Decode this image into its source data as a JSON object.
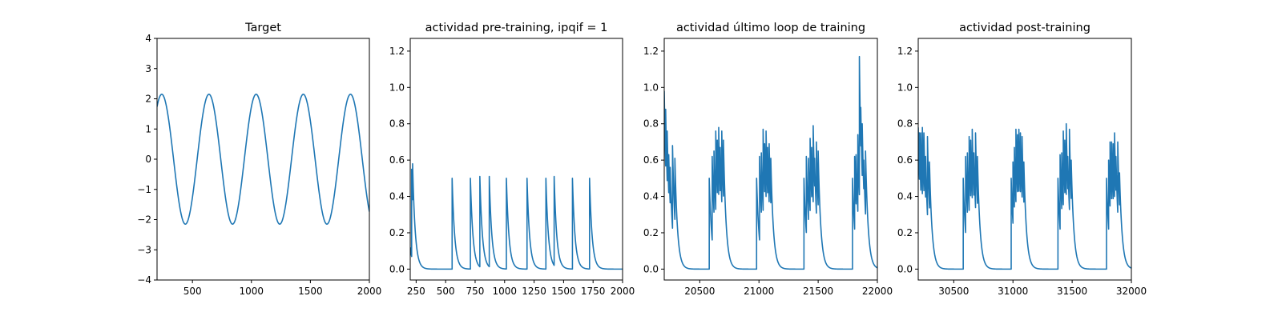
{
  "style": {
    "line_color": "#1f77b4",
    "background": "#ffffff"
  },
  "chart_data": [
    {
      "type": "line",
      "title": "Target",
      "xlim": [
        200,
        2000
      ],
      "ylim": [
        -4,
        4
      ],
      "xticks": [
        500,
        1000,
        1500,
        2000
      ],
      "yticks": [
        -4,
        -3,
        -2,
        -1,
        0,
        1,
        2,
        3,
        4
      ],
      "xtick_labels": [
        "500",
        "1000",
        "1500",
        "2000"
      ],
      "ytick_labels": [
        "−4",
        "−3",
        "−2",
        "−1",
        "0",
        "1",
        "2",
        "3",
        "4"
      ],
      "series": [
        {
          "kind": "sine",
          "x_start": 200,
          "x_end": 2000,
          "amplitude": 2.15,
          "period": 400,
          "peak_at": 240
        }
      ]
    },
    {
      "type": "line",
      "title": "actividad pre-training, ipqif = 1",
      "xlim": [
        200,
        2000
      ],
      "ylim": [
        -0.06,
        1.27
      ],
      "xticks": [
        250,
        500,
        750,
        1000,
        1250,
        1500,
        1750,
        2000
      ],
      "yticks": [
        0.0,
        0.2,
        0.4,
        0.6,
        0.8,
        1.0,
        1.2
      ],
      "xtick_labels": [
        "250",
        "500",
        "750",
        "1000",
        "1250",
        "1500",
        "1750",
        "2000"
      ],
      "ytick_labels": [
        "0.0",
        "0.2",
        "0.4",
        "0.6",
        "0.8",
        "1.0",
        "1.2"
      ],
      "series": [
        {
          "kind": "spikes",
          "x_start": 200,
          "x_end": 2000,
          "tau": 22,
          "start_level": 0.12,
          "spikes": [
            [
              212,
              0.55
            ],
            [
              220,
              0.58
            ],
            [
              555,
              0.5
            ],
            [
              710,
              0.5
            ],
            [
              790,
              0.51
            ],
            [
              870,
              0.51
            ],
            [
              1015,
              0.5
            ],
            [
              1190,
              0.5
            ],
            [
              1350,
              0.5
            ],
            [
              1420,
              0.51
            ],
            [
              1575,
              0.5
            ],
            [
              1720,
              0.5
            ]
          ]
        }
      ]
    },
    {
      "type": "line",
      "title": "actividad último loop de training",
      "xlim": [
        20200,
        22000
      ],
      "ylim": [
        -0.06,
        1.27
      ],
      "xticks": [
        20500,
        21000,
        21500,
        22000
      ],
      "yticks": [
        0.0,
        0.2,
        0.4,
        0.6,
        0.8,
        1.0,
        1.2
      ],
      "xtick_labels": [
        "20500",
        "21000",
        "21500",
        "22000"
      ],
      "ytick_labels": [
        "0.0",
        "0.2",
        "0.4",
        "0.6",
        "0.8",
        "1.0",
        "1.2"
      ],
      "series": [
        {
          "kind": "spikes",
          "x_start": 20200,
          "x_end": 22000,
          "tau": 22,
          "start_level": 0.98,
          "spikes": [
            [
              20212,
              0.88
            ],
            [
              20225,
              0.76
            ],
            [
              20238,
              0.63
            ],
            [
              20250,
              0.56
            ],
            [
              20270,
              0.68
            ],
            [
              20290,
              0.61
            ],
            [
              20580,
              0.5
            ],
            [
              20605,
              0.62
            ],
            [
              20620,
              0.65
            ],
            [
              20635,
              0.76
            ],
            [
              20648,
              0.71
            ],
            [
              20660,
              0.78
            ],
            [
              20673,
              0.67
            ],
            [
              20686,
              0.76
            ],
            [
              20700,
              0.71
            ],
            [
              20980,
              0.5
            ],
            [
              21005,
              0.62
            ],
            [
              21020,
              0.64
            ],
            [
              21035,
              0.77
            ],
            [
              21048,
              0.69
            ],
            [
              21060,
              0.76
            ],
            [
              21073,
              0.67
            ],
            [
              21086,
              0.69
            ],
            [
              21100,
              0.61
            ],
            [
              21380,
              0.5
            ],
            [
              21400,
              0.62
            ],
            [
              21418,
              0.61
            ],
            [
              21432,
              0.72
            ],
            [
              21445,
              0.67
            ],
            [
              21458,
              0.79
            ],
            [
              21470,
              0.61
            ],
            [
              21485,
              0.7
            ],
            [
              21500,
              0.65
            ],
            [
              21790,
              0.5
            ],
            [
              21808,
              0.62
            ],
            [
              21820,
              0.63
            ],
            [
              21835,
              0.74
            ],
            [
              21848,
              1.17
            ],
            [
              21860,
              0.89
            ],
            [
              21872,
              0.8
            ],
            [
              21885,
              0.6
            ],
            [
              21900,
              0.65
            ]
          ]
        }
      ]
    },
    {
      "type": "line",
      "title": "actividad post-training",
      "xlim": [
        30200,
        32000
      ],
      "ylim": [
        -0.06,
        1.27
      ],
      "xticks": [
        30500,
        31000,
        31500,
        32000
      ],
      "yticks": [
        0.0,
        0.2,
        0.4,
        0.6,
        0.8,
        1.0,
        1.2
      ],
      "xtick_labels": [
        "30500",
        "31000",
        "31500",
        "32000"
      ],
      "ytick_labels": [
        "0.0",
        "0.2",
        "0.4",
        "0.6",
        "0.8",
        "1.0",
        "1.2"
      ],
      "series": [
        {
          "kind": "spikes",
          "x_start": 30200,
          "x_end": 32000,
          "tau": 22,
          "start_level": 0.78,
          "spikes": [
            [
              30210,
              0.75
            ],
            [
              30222,
              0.75
            ],
            [
              30235,
              0.78
            ],
            [
              30248,
              0.75
            ],
            [
              30262,
              0.62
            ],
            [
              30278,
              0.73
            ],
            [
              30295,
              0.59
            ],
            [
              30580,
              0.5
            ],
            [
              30600,
              0.62
            ],
            [
              30615,
              0.64
            ],
            [
              30630,
              0.73
            ],
            [
              30643,
              0.71
            ],
            [
              30656,
              0.77
            ],
            [
              30670,
              0.64
            ],
            [
              30684,
              0.75
            ],
            [
              30700,
              0.62
            ],
            [
              30985,
              0.5
            ],
            [
              31000,
              0.59
            ],
            [
              31012,
              0.67
            ],
            [
              31025,
              0.77
            ],
            [
              31038,
              0.74
            ],
            [
              31050,
              0.77
            ],
            [
              31063,
              0.75
            ],
            [
              31077,
              0.73
            ],
            [
              31092,
              0.59
            ],
            [
              31380,
              0.5
            ],
            [
              31398,
              0.63
            ],
            [
              31412,
              0.64
            ],
            [
              31425,
              0.76
            ],
            [
              31438,
              0.71
            ],
            [
              31450,
              0.8
            ],
            [
              31463,
              0.62
            ],
            [
              31477,
              0.77
            ],
            [
              31492,
              0.6
            ],
            [
              31790,
              0.5
            ],
            [
              31808,
              0.6
            ],
            [
              31820,
              0.7
            ],
            [
              31833,
              0.7
            ],
            [
              31846,
              0.69
            ],
            [
              31858,
              0.75
            ],
            [
              31870,
              0.62
            ],
            [
              31885,
              0.7
            ],
            [
              31900,
              0.53
            ]
          ]
        }
      ]
    }
  ]
}
